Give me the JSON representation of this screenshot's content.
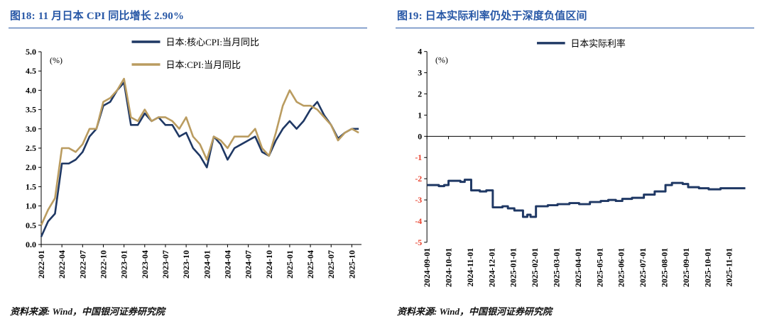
{
  "theme": {
    "accent_blue": "#2757A6",
    "negative_red": "#E8402C",
    "axis_black": "#000000",
    "background": "#FFFFFF"
  },
  "chart_data": [
    {
      "type": "line",
      "title": "图18: 11 月日本 CPI 同比增长 2.90%",
      "source": "资料来源: Wind，中国银河证券研究院",
      "ylabel": "(%)",
      "ylim": [
        0.0,
        5.0
      ],
      "ytick": 0.5,
      "ydecimals": 1,
      "grid": false,
      "legend_position": "top-center",
      "xtick_every": 3,
      "categories": [
        "2022-01",
        "2022-02",
        "2022-03",
        "2022-04",
        "2022-05",
        "2022-06",
        "2022-07",
        "2022-08",
        "2022-09",
        "2022-10",
        "2022-11",
        "2022-12",
        "2023-01",
        "2023-02",
        "2023-03",
        "2023-04",
        "2023-05",
        "2023-06",
        "2023-07",
        "2023-08",
        "2023-09",
        "2023-10",
        "2023-11",
        "2023-12",
        "2024-01",
        "2024-02",
        "2024-03",
        "2024-04",
        "2024-05",
        "2024-06",
        "2024-07",
        "2024-08",
        "2024-09",
        "2024-10",
        "2024-11",
        "2024-12",
        "2025-01",
        "2025-02",
        "2025-03",
        "2025-04",
        "2025-05",
        "2025-06",
        "2025-07",
        "2025-08",
        "2025-09",
        "2025-10",
        "2025-11"
      ],
      "series": [
        {
          "name": "日本:核心CPI:当月同比",
          "color": "#1F3864",
          "values": [
            0.2,
            0.6,
            0.8,
            2.1,
            2.1,
            2.2,
            2.4,
            2.8,
            3.0,
            3.6,
            3.7,
            4.0,
            4.2,
            3.1,
            3.1,
            3.4,
            3.2,
            3.3,
            3.1,
            3.1,
            2.8,
            2.9,
            2.5,
            2.3,
            2.0,
            2.8,
            2.6,
            2.2,
            2.5,
            2.6,
            2.7,
            2.8,
            2.4,
            2.3,
            2.7,
            3.0,
            3.2,
            3.0,
            3.2,
            3.5,
            3.7,
            3.35,
            3.1,
            2.75,
            2.9,
            3.0,
            3.0
          ]
        },
        {
          "name": "日本:CPI:当月同比",
          "color": "#BA9C60",
          "values": [
            0.5,
            0.9,
            1.2,
            2.5,
            2.5,
            2.4,
            2.6,
            3.0,
            3.0,
            3.7,
            3.8,
            4.0,
            4.3,
            3.3,
            3.2,
            3.5,
            3.2,
            3.3,
            3.3,
            3.2,
            3.0,
            3.3,
            2.8,
            2.6,
            2.2,
            2.8,
            2.7,
            2.5,
            2.8,
            2.8,
            2.8,
            3.0,
            2.5,
            2.3,
            2.9,
            3.6,
            4.0,
            3.7,
            3.6,
            3.6,
            3.5,
            3.3,
            3.1,
            2.7,
            2.9,
            3.0,
            2.9
          ]
        }
      ]
    },
    {
      "type": "step",
      "title": "图19: 日本实际利率仍处于深度负值区间",
      "source": "资料来源: Wind，中国银河证券研究院",
      "ylabel": "(%)",
      "ylim": [
        -5,
        4
      ],
      "ytick": 1,
      "ydecimals": 0,
      "grid": false,
      "legend_position": "top-center",
      "xlim": [
        0,
        14.75
      ],
      "xtick_labels": [
        "2024-09-01",
        "2024-10-01",
        "2024-11-01",
        "2024-12-01",
        "2025-01-01",
        "2025-02-01",
        "2025-03-01",
        "2025-04-01",
        "2025-05-01",
        "2025-06-01",
        "2025-07-01",
        "2025-08-01",
        "2025-09-01",
        "2025-10-01",
        "2025-11-01"
      ],
      "series": [
        {
          "name": "日本实际利率",
          "color": "#1F3864",
          "points": [
            [
              0,
              -2.3
            ],
            [
              0.55,
              -2.35
            ],
            [
              0.8,
              -2.3
            ],
            [
              1.0,
              -2.1
            ],
            [
              1.55,
              -2.15
            ],
            [
              1.75,
              -2.05
            ],
            [
              2.05,
              -2.55
            ],
            [
              2.45,
              -2.6
            ],
            [
              2.75,
              -2.55
            ],
            [
              3.05,
              -3.35
            ],
            [
              3.5,
              -3.3
            ],
            [
              3.75,
              -3.4
            ],
            [
              4.05,
              -3.5
            ],
            [
              4.45,
              -3.8
            ],
            [
              4.65,
              -3.7
            ],
            [
              4.8,
              -3.8
            ],
            [
              5.05,
              -3.3
            ],
            [
              5.6,
              -3.25
            ],
            [
              6.05,
              -3.2
            ],
            [
              6.6,
              -3.15
            ],
            [
              7.05,
              -3.2
            ],
            [
              7.55,
              -3.1
            ],
            [
              8.05,
              -3.05
            ],
            [
              8.4,
              -3.0
            ],
            [
              8.75,
              -3.05
            ],
            [
              9.05,
              -2.95
            ],
            [
              9.5,
              -2.9
            ],
            [
              10.05,
              -2.75
            ],
            [
              10.55,
              -2.6
            ],
            [
              11.05,
              -2.3
            ],
            [
              11.35,
              -2.2
            ],
            [
              11.85,
              -2.25
            ],
            [
              12.1,
              -2.4
            ],
            [
              12.6,
              -2.45
            ],
            [
              13.05,
              -2.5
            ],
            [
              13.6,
              -2.45
            ],
            [
              14.05,
              -2.45
            ]
          ]
        }
      ]
    }
  ]
}
